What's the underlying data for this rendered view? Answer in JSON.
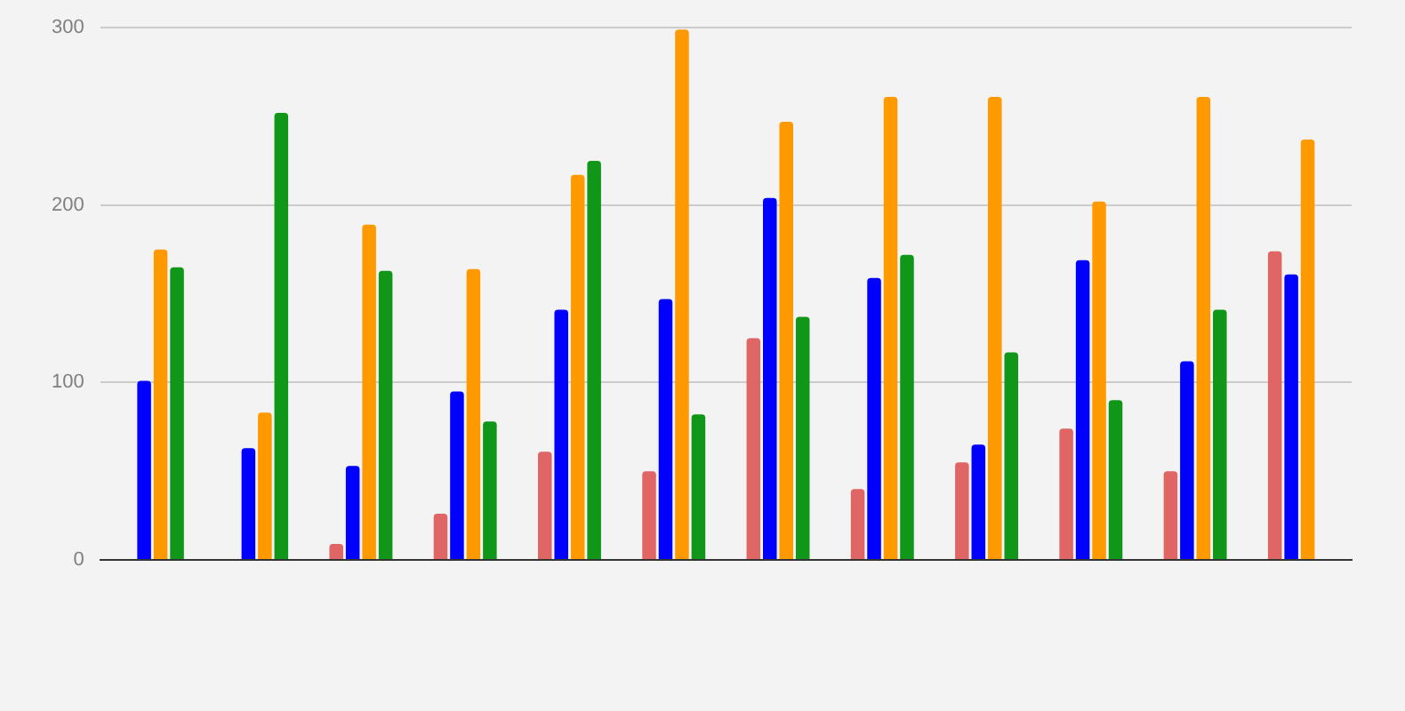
{
  "chart_data": {
    "type": "bar",
    "categories": [
      null,
      null,
      null,
      null,
      null,
      null,
      null,
      null,
      null,
      null,
      null,
      null
    ],
    "series": [
      {
        "color": "#e06666",
        "values": [
          null,
          null,
          9,
          26,
          61,
          50,
          125,
          40,
          55,
          74,
          50,
          174
        ]
      },
      {
        "color": "#0000ff",
        "values": [
          101,
          63,
          53,
          95,
          141,
          147,
          204,
          159,
          65,
          169,
          112,
          161
        ]
      },
      {
        "color": "#ff9900",
        "values": [
          175,
          83,
          189,
          164,
          217,
          299,
          247,
          261,
          261,
          202,
          261,
          237
        ]
      },
      {
        "color": "#109618",
        "values": [
          165,
          252,
          163,
          78,
          225,
          82,
          137,
          172,
          117,
          90,
          141,
          null
        ]
      }
    ],
    "ylim": [
      0,
      300
    ],
    "yticks": [
      0,
      100,
      200,
      300
    ],
    "grid": "y",
    "legend": false,
    "tick_labels": "y"
  }
}
